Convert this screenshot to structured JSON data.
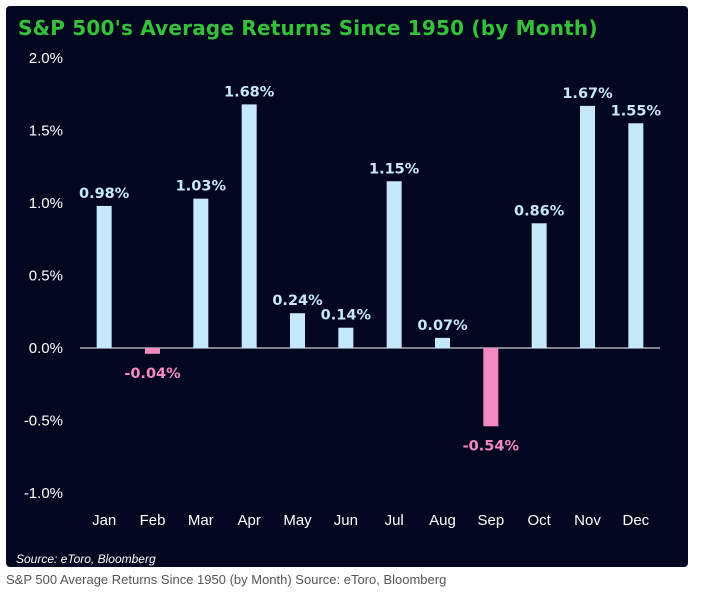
{
  "chart_data": {
    "type": "bar",
    "title": "S&P 500's Average Returns Since 1950 (by Month)",
    "categories": [
      "Jan",
      "Feb",
      "Mar",
      "Apr",
      "May",
      "Jun",
      "Jul",
      "Aug",
      "Sep",
      "Oct",
      "Nov",
      "Dec"
    ],
    "values": [
      0.98,
      -0.04,
      1.03,
      1.68,
      0.24,
      0.14,
      1.15,
      0.07,
      -0.54,
      0.86,
      1.67,
      1.55
    ],
    "value_labels": [
      "0.98%",
      "-0.04%",
      "1.03%",
      "1.68%",
      "0.24%",
      "0.14%",
      "1.15%",
      "0.07%",
      "-0.54%",
      "0.86%",
      "1.67%",
      "1.55%"
    ],
    "yticks": [
      2.0,
      1.5,
      1.0,
      0.5,
      0.0,
      -0.5,
      -1.0
    ],
    "ytick_labels": [
      "2.0%",
      "1.5%",
      "1.0%",
      "0.5%",
      "0.0%",
      "-0.5%",
      "-1.0%"
    ],
    "ylim": [
      -1.0,
      2.0
    ],
    "xlabel": "",
    "ylabel": "",
    "grid": false,
    "colors": {
      "positive": "#c5e8fb",
      "negative": "#f58ac3",
      "title": "#33c23a",
      "background": "#03061f"
    }
  },
  "source_note": "Source: eToro, Bloomberg",
  "caption": "S&P 500 Average Returns Since 1950 (by Month) Source: eToro, Bloomberg"
}
